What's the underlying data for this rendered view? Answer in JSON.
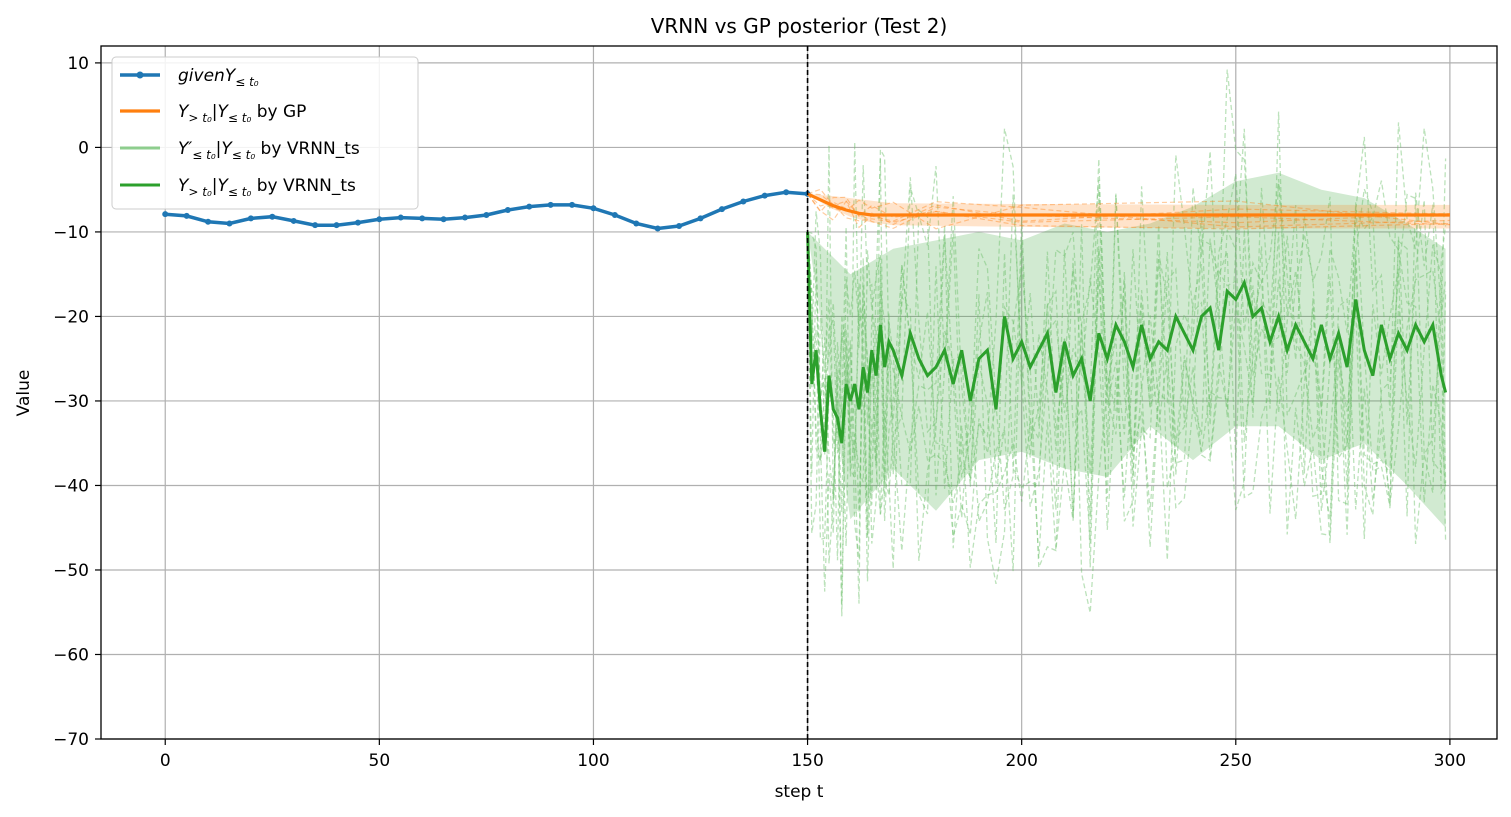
{
  "chart_data": {
    "type": "line",
    "title": "VRNN vs GP posterior (Test 2)",
    "xlabel": "step t",
    "ylabel": "Value",
    "xlim": [
      -15,
      311
    ],
    "ylim": [
      -70,
      12
    ],
    "xticks": [
      0,
      50,
      100,
      150,
      200,
      250,
      300
    ],
    "yticks": [
      10,
      0,
      -10,
      -20,
      -30,
      -40,
      -50,
      -60,
      -70
    ],
    "grid": true,
    "legend_position": "top-left",
    "split_step": 150,
    "colors": {
      "given": "#1f77b4",
      "gp": "#ff7f0e",
      "vrnn_recon": "#6abf69",
      "vrnn": "#2ca02c",
      "split_line": "#000000"
    },
    "legend": [
      {
        "key": "given",
        "main": "given",
        "pre": "",
        "var": "Y",
        "sub": "≤ t₀",
        "rest": ""
      },
      {
        "key": "gp",
        "main": "",
        "pre": "",
        "var": "Y",
        "sub": "> t₀",
        "rest": "|Y",
        "sub2": "≤ t₀",
        "tail": " by GP"
      },
      {
        "key": "vrnn_recon",
        "main": "",
        "pre": "",
        "var": "Y′",
        "sub": "≤ t₀",
        "rest": "|Y",
        "sub2": "≤ t₀",
        "tail": " by VRNN_ts"
      },
      {
        "key": "vrnn",
        "main": "",
        "pre": "",
        "var": "Y",
        "sub": "> t₀",
        "rest": "|Y",
        "sub2": "≤ t₀",
        "tail": " by VRNN_ts"
      }
    ],
    "given_series": {
      "x": [
        0,
        5,
        10,
        15,
        20,
        25,
        30,
        35,
        40,
        45,
        50,
        55,
        60,
        65,
        70,
        75,
        80,
        85,
        90,
        95,
        100,
        105,
        110,
        115,
        120,
        125,
        130,
        135,
        140,
        145,
        150
      ],
      "y": [
        -7.9,
        -8.1,
        -8.8,
        -9.0,
        -8.4,
        -8.2,
        -8.7,
        -9.2,
        -9.2,
        -8.9,
        -8.5,
        -8.3,
        -8.4,
        -8.5,
        -8.3,
        -8.0,
        -7.4,
        -7.0,
        -6.8,
        -6.8,
        -7.2,
        -8.0,
        -9.0,
        -9.6,
        -9.3,
        -8.4,
        -7.3,
        -6.4,
        -5.7,
        -5.3,
        -5.5
      ]
    },
    "gp_mean": {
      "x": [
        150,
        153,
        156,
        159,
        162,
        165,
        170,
        180,
        200,
        250,
        300
      ],
      "y": [
        -5.5,
        -6.2,
        -6.9,
        -7.4,
        -7.8,
        -8.0,
        -8.0,
        -8.0,
        -8.0,
        -8.0,
        -8.0
      ]
    },
    "gp_band": {
      "x": [
        150,
        155,
        160,
        165,
        170,
        200,
        250,
        300
      ],
      "upper": [
        -5.5,
        -5.7,
        -6.0,
        -6.3,
        -6.6,
        -6.7,
        -6.8,
        -6.8
      ],
      "lower": [
        -5.5,
        -7.1,
        -8.2,
        -8.9,
        -9.2,
        -9.4,
        -9.6,
        -9.6
      ]
    },
    "vrnn_mean": {
      "x": [
        150,
        151,
        152,
        153,
        154,
        155,
        156,
        157,
        158,
        159,
        160,
        161,
        162,
        163,
        164,
        165,
        166,
        167,
        168,
        169,
        170,
        172,
        174,
        176,
        178,
        180,
        182,
        184,
        186,
        188,
        190,
        192,
        194,
        196,
        198,
        200,
        202,
        204,
        206,
        208,
        210,
        212,
        214,
        216,
        218,
        220,
        222,
        224,
        226,
        228,
        230,
        232,
        234,
        236,
        238,
        240,
        242,
        244,
        246,
        248,
        250,
        252,
        254,
        256,
        258,
        260,
        262,
        264,
        266,
        268,
        270,
        272,
        274,
        276,
        278,
        280,
        282,
        284,
        286,
        288,
        290,
        292,
        294,
        296,
        298,
        299
      ],
      "y": [
        -10,
        -28,
        -24,
        -31,
        -36,
        -27,
        -31,
        -32,
        -35,
        -28,
        -30,
        -28,
        -31,
        -26,
        -29,
        -24,
        -27,
        -21,
        -26,
        -23,
        -24,
        -27,
        -22,
        -25,
        -27,
        -26,
        -24,
        -28,
        -24,
        -30,
        -25,
        -24,
        -31,
        -20,
        -25,
        -23,
        -26,
        -24,
        -22,
        -29,
        -23,
        -27,
        -25,
        -30,
        -22,
        -25,
        -21,
        -23,
        -26,
        -21,
        -25,
        -23,
        -24,
        -20,
        -22,
        -24,
        -20,
        -19,
        -24,
        -17,
        -18,
        -16,
        -20,
        -19,
        -23,
        -20,
        -24,
        -21,
        -23,
        -25,
        -21,
        -25,
        -22,
        -26,
        -18,
        -24,
        -27,
        -21,
        -25,
        -22,
        -24,
        -21,
        -23,
        -21,
        -27,
        -29
      ]
    },
    "vrnn_band": {
      "x": [
        150,
        160,
        170,
        180,
        190,
        200,
        210,
        220,
        230,
        240,
        250,
        260,
        270,
        280,
        290,
        299
      ],
      "upper": [
        -10,
        -15,
        -12,
        -11,
        -10,
        -11,
        -9,
        -10,
        -9,
        -7,
        -4,
        -3,
        -5,
        -6,
        -9,
        -12
      ],
      "lower": [
        -10,
        -44,
        -38,
        -43,
        -37,
        -36,
        -38,
        -39,
        -33,
        -37,
        -33,
        -33,
        -37,
        -35,
        -40,
        -45
      ]
    },
    "vrnn_samples_note": "",
    "gp_samples_note": ""
  }
}
